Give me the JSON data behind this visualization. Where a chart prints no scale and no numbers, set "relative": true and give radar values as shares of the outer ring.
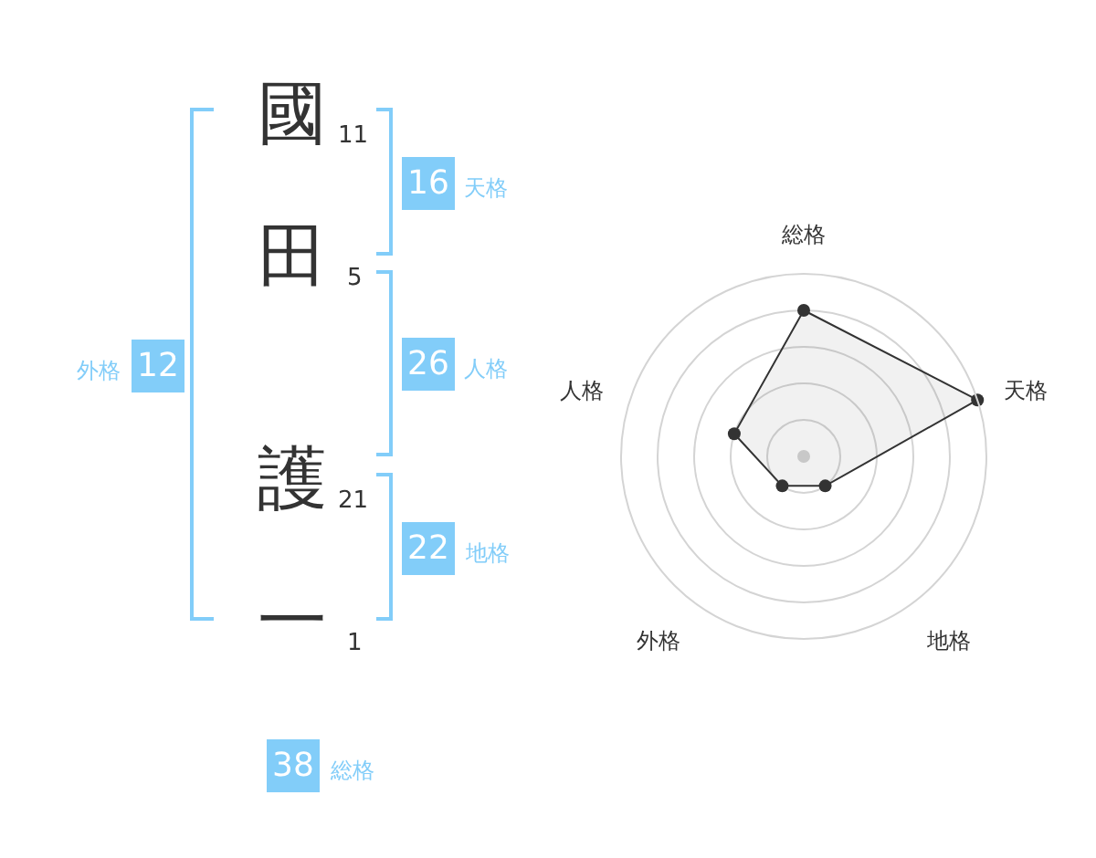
{
  "chart_data": [
    {
      "type": "other",
      "categories": [
        "國",
        "田",
        "護",
        "一"
      ],
      "color": "#82cdf9",
      "annotations": [
        "11",
        "5",
        "21",
        "1",
        "16",
        "天格",
        "26",
        "人格",
        "22",
        "地格",
        "12",
        "外格",
        "38",
        "総格"
      ]
    },
    {
      "type": "radar",
      "categories": [
        "総格",
        "天格",
        "地格",
        "外格",
        "人格"
      ],
      "values": [
        0.8,
        1,
        0.2,
        0.2,
        0.4
      ],
      "color": "#333333",
      "relative": true,
      "grid": true,
      "marker": "circle"
    }
  ]
}
